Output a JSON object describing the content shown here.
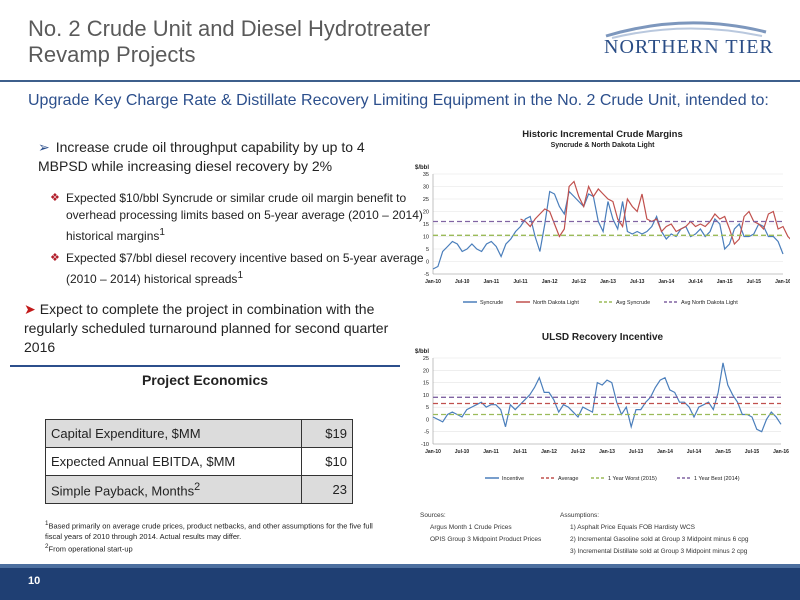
{
  "header": {
    "title_line1": "No. 2 Crude Unit and Diesel Hydrotreater",
    "title_line2": "Revamp Projects",
    "logo_text": "NORTHERN TIER"
  },
  "subtitle": "Upgrade Key Charge Rate & Distillate Recovery Limiting Equipment in the No. 2 Crude Unit, intended to:",
  "bullets": {
    "b1": "Increase crude oil throughput capability by up to 4 MBPSD while increasing diesel recovery by 2%",
    "s1": "Expected $10/bbl Syncrude or similar crude oil margin benefit to overhead processing limits based on 5-year average (2010 – 2014) historical margins",
    "s1_sup": "1",
    "s2": "Expected $7/bbl diesel recovery incentive based on 5-year average (2010 – 2014) historical spreads",
    "s2_sup": "1",
    "b2": "Expect to complete the project in combination with the regularly scheduled turnaround planned for second quarter 2016"
  },
  "economics": {
    "title": "Project Economics",
    "rows": [
      {
        "label": "Capital Expenditure, $MM",
        "value": "$19"
      },
      {
        "label": "Expected Annual EBITDA, $MM",
        "value": "$10"
      },
      {
        "label": "Simple Payback, Months",
        "sup": "2",
        "value": "23"
      }
    ]
  },
  "footnotes": {
    "f1_sup": "1",
    "f1": "Based primarily on average crude prices, product netbacks, and other assumptions for the five full fiscal years of 2010 through 2014.  Actual results may differ.",
    "f2_sup": "2",
    "f2": "From operational start-up"
  },
  "sources": {
    "sources_label": "Sources:",
    "source1": "Argus Month 1 Crude Prices",
    "source2": "OPIS Group 3 Midpoint Product Prices",
    "assumptions_label": "Assumptions:",
    "a1": "1) Asphalt Price Equals FOB Hardisty WCS",
    "a2": "2) Incremental Gasoline sold at Group 3 Midpoint minus 6 cpg",
    "a3": "3) Incremental Distillate sold at Group 3 Midpoint minus 2 cpg"
  },
  "footer": {
    "page_number": "10"
  },
  "colors": {
    "navy": "#1f3f73",
    "syncrude": "#4a7ebb",
    "ndl": "#c0504d",
    "avg_green": "#9bbb59",
    "avg_purple": "#8064a2"
  },
  "chart_data": [
    {
      "type": "line",
      "title": "Historic Incremental Crude Margins",
      "subtitle": "Syncrude & North Dakota Light",
      "ylabel": "$/bbl",
      "ylim": [
        -5,
        35
      ],
      "yticks": [
        -5,
        0,
        5,
        10,
        15,
        20,
        25,
        30,
        35
      ],
      "x_tick_labels": [
        "Jan-10",
        "Jul-10",
        "Jan-11",
        "Jul-11",
        "Jan-12",
        "Jul-12",
        "Jan-13",
        "Jul-13",
        "Jan-14",
        "Jul-14",
        "Jan-15",
        "Jul-15",
        "Jan-16"
      ],
      "x_count": 73,
      "legend_position": "bottom",
      "series": [
        {
          "name": "Syncrude",
          "color": "#4a7ebb",
          "dash": "",
          "values": [
            -3,
            -2,
            4,
            6,
            8,
            7,
            4,
            5,
            7,
            5,
            4,
            7,
            8,
            6,
            2,
            7,
            9,
            12,
            14,
            17,
            18,
            10,
            4,
            15,
            28,
            27,
            22,
            19,
            28,
            26,
            24,
            22,
            27,
            26,
            16,
            12,
            24,
            17,
            13,
            24,
            12,
            11,
            12,
            11,
            12,
            14,
            18,
            12,
            9,
            11,
            10,
            13,
            14,
            10,
            11,
            13,
            10,
            12,
            17,
            15,
            5,
            7,
            13,
            15,
            10,
            10,
            11,
            15,
            14,
            10,
            10,
            8,
            3
          ]
        },
        {
          "name": "North Dakota Light",
          "color": "#c0504d",
          "dash": "",
          "startIndex": 18,
          "values": [
            17,
            16,
            14,
            17,
            19,
            21,
            20,
            15,
            10,
            13,
            30,
            32,
            26,
            22,
            30,
            26,
            29,
            27,
            25,
            24,
            17,
            14,
            25,
            22,
            20,
            27,
            17,
            16,
            17,
            12,
            14,
            15,
            12,
            13,
            14,
            16,
            14,
            15,
            14,
            16,
            19,
            17,
            18,
            13,
            7,
            9,
            18,
            20,
            16,
            15,
            13,
            19,
            20,
            13,
            14,
            10,
            8
          ]
        },
        {
          "name": "Avg Syncrude",
          "color": "#9bbb59",
          "dash": "5,3",
          "constant": 10.5
        },
        {
          "name": "Avg North Dakota Light",
          "color": "#8064a2",
          "dash": "5,3",
          "constant": 16
        }
      ]
    },
    {
      "type": "line",
      "title": "ULSD Recovery Incentive",
      "ylabel": "$/bbl",
      "ylim": [
        -10,
        25
      ],
      "yticks": [
        -10,
        -5,
        0,
        5,
        10,
        15,
        20,
        25
      ],
      "x_tick_labels": [
        "Jan-10",
        "Jul-10",
        "Jan-11",
        "Jul-11",
        "Jan-12",
        "Jul-12",
        "Jan-13",
        "Jul-13",
        "Jan-14",
        "Jul-14",
        "Jan-15",
        "Jul-15",
        "Jan-16"
      ],
      "x_count": 73,
      "legend_position": "bottom",
      "series": [
        {
          "name": "Incentive",
          "color": "#4a7ebb",
          "dash": "",
          "values": [
            1,
            0,
            -1,
            2,
            3,
            2,
            1,
            4,
            5,
            6,
            7,
            5,
            6,
            6,
            4,
            -3,
            6,
            4,
            6,
            8,
            10,
            13,
            17,
            11,
            11,
            8,
            3,
            6,
            5,
            3,
            1,
            5,
            4,
            3,
            15,
            14,
            16,
            15,
            7,
            2,
            5,
            -3,
            4,
            4,
            7,
            9,
            13,
            16,
            17,
            12,
            11,
            7,
            7,
            5,
            1,
            5,
            6,
            7,
            4,
            11,
            23,
            14,
            10,
            7,
            2,
            2,
            1,
            -4,
            -5,
            0,
            3,
            1,
            -2
          ]
        },
        {
          "name": "Average",
          "color": "#c0504d",
          "dash": "5,3",
          "constant": 6.5
        },
        {
          "name": "1 Year Worst (2015)",
          "color": "#9bbb59",
          "dash": "5,3",
          "constant": 2
        },
        {
          "name": "1 Year Best (2014)",
          "color": "#8064a2",
          "dash": "5,3",
          "constant": 9
        }
      ]
    }
  ]
}
